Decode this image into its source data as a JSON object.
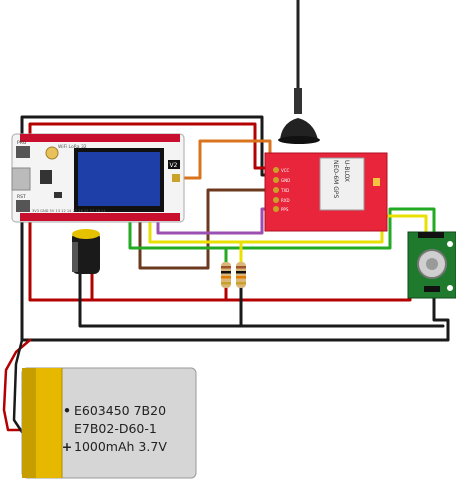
{
  "battery": {
    "line1": "E603450 7B20",
    "line2": "E7B02-D60-1",
    "line3": "1000mAh 3.7V",
    "plus_symbol": "+",
    "minus_symbol": "•"
  },
  "board": {
    "button_prg": "PRG",
    "button_rst": "RST",
    "brand": "WiFi LoRa 32",
    "version": "V2",
    "pin_labels": "3V3 GND 5V 13 12 14 27 26 25 17 16 21"
  },
  "gps": {
    "pins": [
      "VCC",
      "GND",
      "TXD",
      "RXD",
      "PPS"
    ],
    "model": "NEO-6M GPS",
    "brand": "U-BLOX"
  },
  "colors": {
    "black_wire": "#1a1a1a",
    "red_wire": "#b30000",
    "orange_wire": "#d9741c",
    "brown_wire": "#6b3a1e",
    "purple_wire": "#9b4fb0",
    "yellow_wire": "#e8e000",
    "green_wire": "#22aa22",
    "gps_board": "#e8253a",
    "sensor_board": "#1f7a2e",
    "oled_screen": "#1e3fa8",
    "battery_body": "#d6d6d6",
    "battery_wrap": "#e6b800"
  }
}
